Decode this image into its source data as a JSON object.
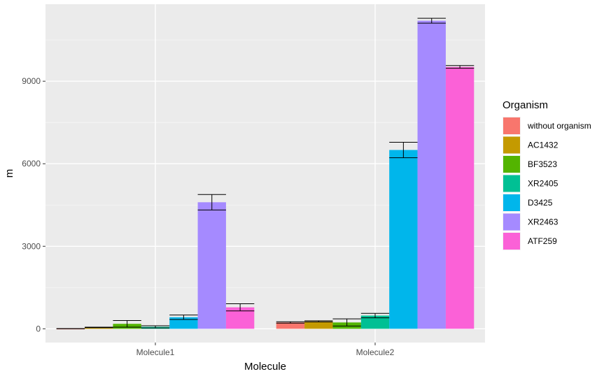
{
  "chart_data": {
    "type": "bar",
    "title": "",
    "xlabel": "Molecule",
    "ylabel": "m",
    "categories": [
      "Molecule1",
      "Molecule2"
    ],
    "ylim": [
      -500,
      11800
    ],
    "yticks": [
      0,
      3000,
      6000,
      9000
    ],
    "grid": true,
    "legend": {
      "title": "Organism",
      "position": "right"
    },
    "series": [
      {
        "name": "without organism",
        "color": "#F8766D",
        "values": [
          5,
          230
        ],
        "errors": [
          3,
          25
        ]
      },
      {
        "name": "AC1432",
        "color": "#C49A00",
        "values": [
          50,
          270
        ],
        "errors": [
          10,
          20
        ]
      },
      {
        "name": "BF3523",
        "color": "#53B400",
        "values": [
          180,
          230
        ],
        "errors": [
          120,
          130
        ]
      },
      {
        "name": "XR2405",
        "color": "#00C094",
        "values": [
          70,
          480
        ],
        "errors": [
          40,
          80
        ]
      },
      {
        "name": "D3425",
        "color": "#00B6EB",
        "values": [
          420,
          6500
        ],
        "errors": [
          80,
          280
        ]
      },
      {
        "name": "XR2463",
        "color": "#A58AFF",
        "values": [
          4600,
          11200
        ],
        "errors": [
          280,
          90
        ]
      },
      {
        "name": "ATF259",
        "color": "#FB61D7",
        "values": [
          780,
          9520
        ],
        "errors": [
          130,
          50
        ]
      }
    ]
  }
}
